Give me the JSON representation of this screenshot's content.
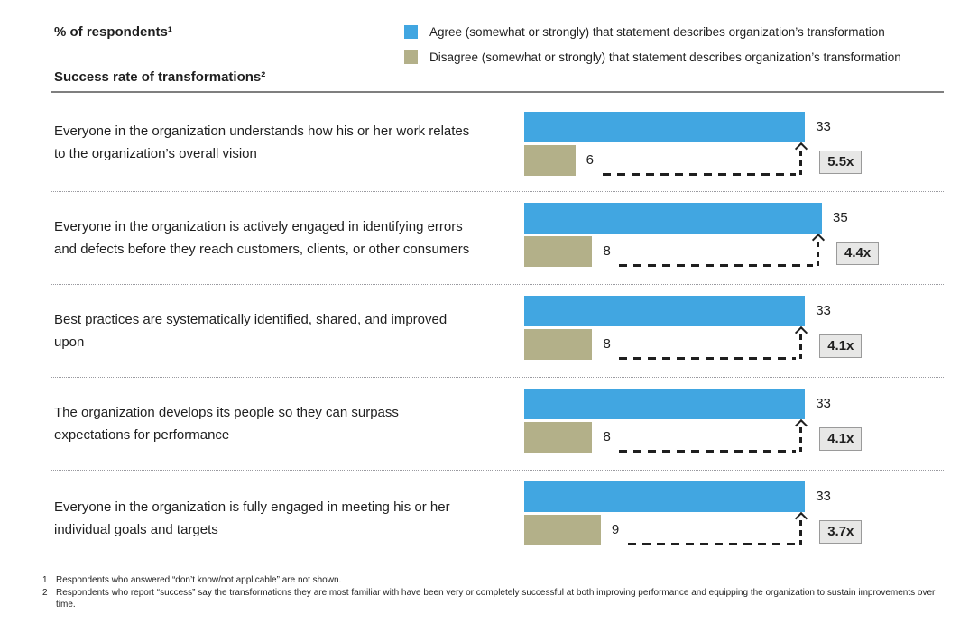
{
  "page": {
    "title": "% of respondents¹",
    "subtitle": "Success rate of transformations²"
  },
  "legend": {
    "agree_label": "Agree (somewhat or strongly) that statement describes organization’s transformation",
    "disagree_label": "Disagree (somewhat or strongly) that statement describes organization’s transformation"
  },
  "colors": {
    "agree": "#41a6e1",
    "disagree": "#b3b089",
    "badge_bg": "#e7e7e6",
    "badge_border": "#9a9a9a",
    "connector": "#1f1f1f"
  },
  "chart_data": {
    "type": "bar",
    "orientation": "horizontal",
    "title": "% of respondents¹",
    "subtitle": "Success rate of transformations²",
    "xlim": [
      0,
      35
    ],
    "legend_position": "top-right",
    "grid": false,
    "series_names": [
      "Agree (somewhat or strongly)",
      "Disagree (somewhat or strongly)"
    ],
    "rows": [
      {
        "statement": "Everyone in the organization understands how his or her work relates to the organization’s overall vision",
        "agree": 33,
        "disagree": 6,
        "multiplier": "5.5x"
      },
      {
        "statement": "Everyone in the organization is actively engaged in identifying errors and defects before they reach customers, clients, or other consumers",
        "agree": 35,
        "disagree": 8,
        "multiplier": "4.4x"
      },
      {
        "statement": "Best practices are systematically identified, shared, and improved upon",
        "agree": 33,
        "disagree": 8,
        "multiplier": "4.1x"
      },
      {
        "statement": "The organization develops its people so they can surpass expectations for performance",
        "agree": 33,
        "disagree": 8,
        "multiplier": "4.1x"
      },
      {
        "statement": "Everyone in the organization is fully engaged in meeting his or her individual goals and targets",
        "agree": 33,
        "disagree": 9,
        "multiplier": "3.7x"
      }
    ]
  },
  "footnotes": [
    {
      "num": "1",
      "text": "Respondents who answered “don’t know/not applicable” are not shown."
    },
    {
      "num": "2",
      "text": "Respondents who report “success” say the transformations they are most familiar with have been very or completely successful at both improving performance and equipping the organization to sustain improvements over time."
    }
  ]
}
